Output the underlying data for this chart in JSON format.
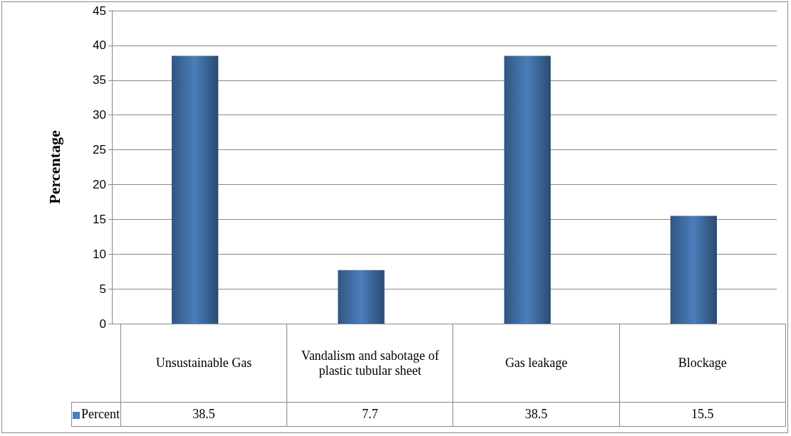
{
  "chart_data": {
    "type": "bar",
    "ylabel": "Percentage",
    "categories": [
      "Unsustainable Gas",
      "Vandalism and sabotage of plastic tubular sheet",
      "Gas leakage",
      "Blockage"
    ],
    "series": [
      {
        "name": "Percent",
        "color": "#4a7ebb",
        "values": [
          38.5,
          7.7,
          38.5,
          15.5
        ]
      }
    ],
    "ylim": [
      0,
      45
    ],
    "yticks": [
      0,
      5,
      10,
      15,
      20,
      25,
      30,
      35,
      40,
      45
    ],
    "grid": "y",
    "legend": "bottom",
    "data_labels": true
  }
}
